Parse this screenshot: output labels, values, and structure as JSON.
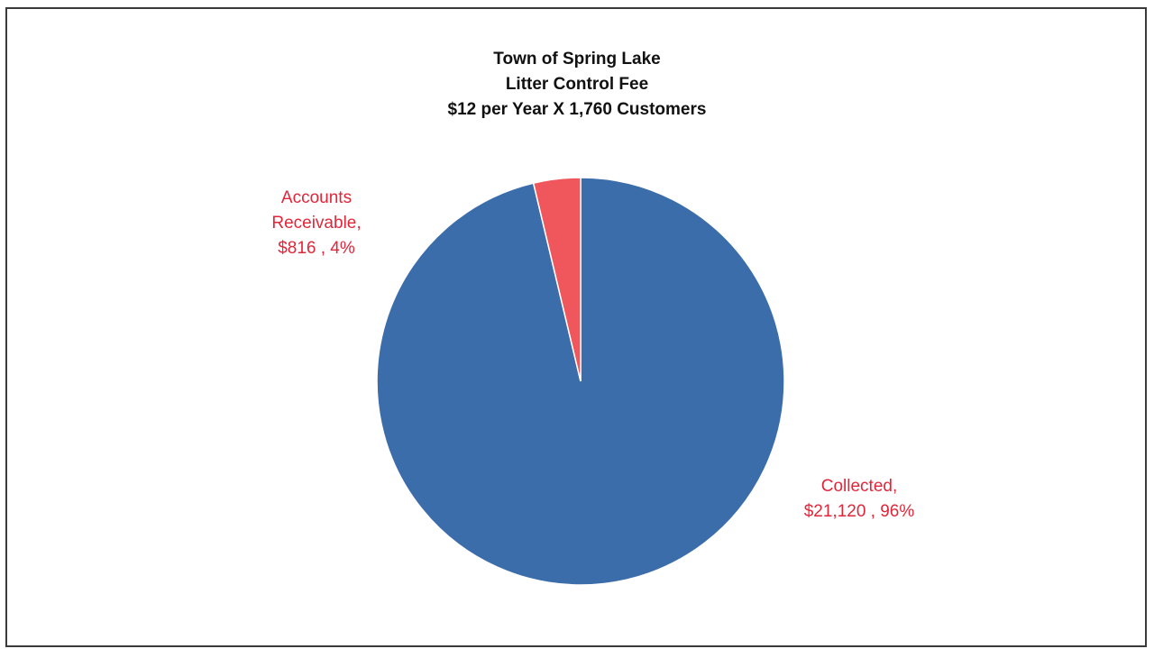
{
  "chart_data": {
    "type": "pie",
    "title_lines": [
      "Town of Spring Lake",
      "Litter Control Fee",
      "$12 per Year X 1,760 Customers"
    ],
    "slices": [
      {
        "name": "Collected",
        "value": 21120,
        "percent": 96,
        "color": "#3c6dab",
        "label_lines": [
          "Collected,",
          "$21,120 , 96%"
        ]
      },
      {
        "name": "Accounts Receivable",
        "value": 816,
        "percent": 4,
        "color": "#f0575c",
        "label_lines": [
          "Accounts",
          "Receivable,",
          "$816 , 4%"
        ]
      }
    ],
    "start_angle_deg": 0,
    "direction": "clockwise",
    "label_color": "#e2263a"
  }
}
